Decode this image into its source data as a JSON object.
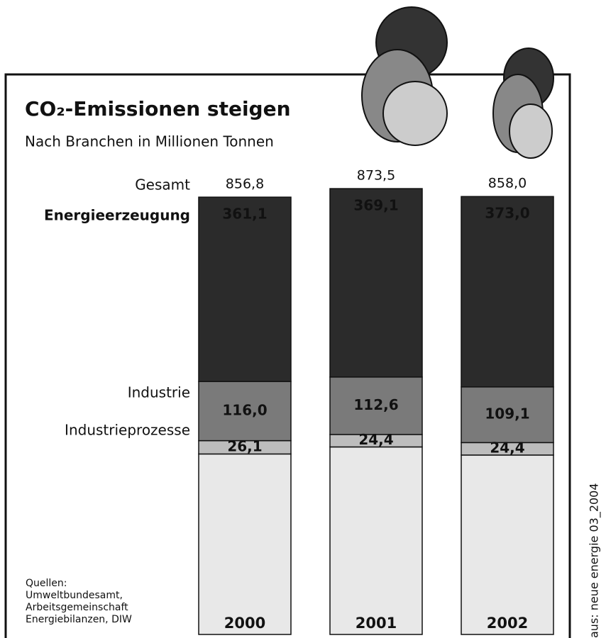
{
  "chart_data": {
    "type": "stacked_bar",
    "title": "CO₂-Emissionen steigen",
    "subtitle": "Nach Branchen in Millionen Tonnen",
    "categories": [
      "2000",
      "2001",
      "2002"
    ],
    "totals_name": "Gesamt",
    "totals": [
      856.8,
      873.5,
      858.0
    ],
    "totals_labels": [
      "856,8",
      "873,5",
      "858,0"
    ],
    "series": [
      {
        "name": "Energieerzeugung",
        "color": "#2b2b2b",
        "values": [
          361.1,
          369.1,
          373.0
        ],
        "value_labels": [
          "361,1",
          "369,1",
          "373,0"
        ]
      },
      {
        "name": "Industrie",
        "color": "#7a7a7a",
        "values": [
          116.0,
          112.6,
          109.1
        ],
        "value_labels": [
          "116,0",
          "112,6",
          "109,1"
        ]
      },
      {
        "name": "Industrieprozesse",
        "color": "#bdbdbd",
        "values": [
          26.1,
          24.4,
          24.4
        ],
        "value_labels": [
          "26,1",
          "24,4",
          "24,4"
        ]
      },
      {
        "color": "#e8e8e8",
        "values": [
          353.6,
          367.4,
          351.5
        ]
      }
    ],
    "source": [
      "Quellen:",
      "Umweltbundesamt,",
      "Arbeitsgemeinschaft",
      "Energiebilanzen, DIW"
    ],
    "credit": "aus: neue energie 03_2004"
  }
}
